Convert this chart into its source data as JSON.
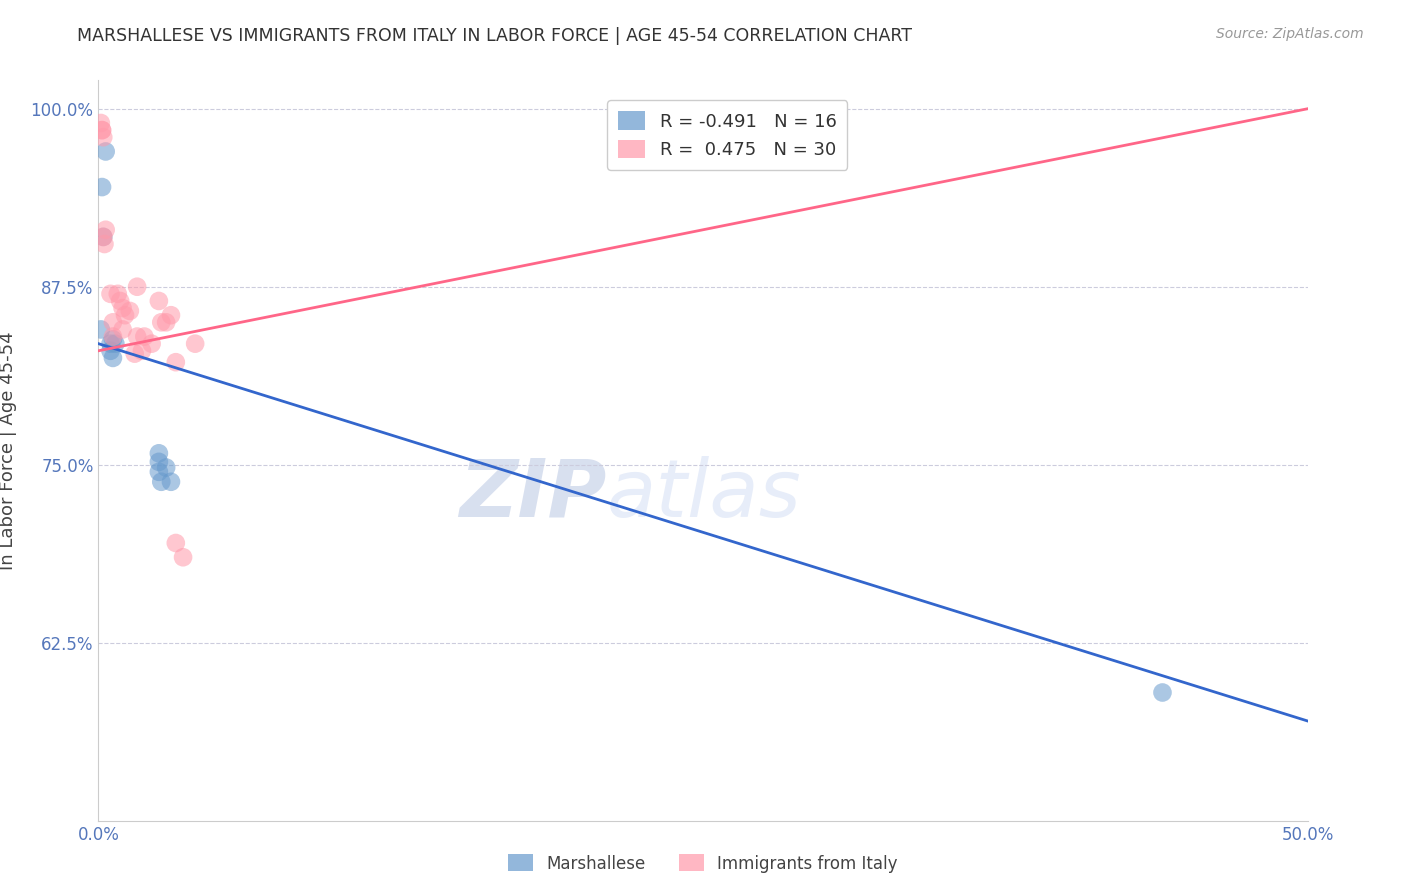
{
  "title": "MARSHALLESE VS IMMIGRANTS FROM ITALY IN LABOR FORCE | AGE 45-54 CORRELATION CHART",
  "source": "Source: ZipAtlas.com",
  "ylabel": "In Labor Force | Age 45-54",
  "xlim": [
    0.0,
    50.0
  ],
  "ylim": [
    50.0,
    102.0
  ],
  "xticks": [
    0.0,
    10.0,
    20.0,
    30.0,
    40.0,
    50.0
  ],
  "xticklabels": [
    "0.0%",
    "",
    "",
    "",
    "",
    "50.0%"
  ],
  "yticks": [
    62.5,
    75.0,
    87.5,
    100.0
  ],
  "yticklabels": [
    "62.5%",
    "75.0%",
    "87.5%",
    "100.0%"
  ],
  "legend_label1": "Marshallese",
  "legend_label2": "Immigrants from Italy",
  "r1": -0.491,
  "n1": 16,
  "r2": 0.475,
  "n2": 30,
  "color1": "#6699CC",
  "color2": "#FF99AA",
  "trend_color1": "#3366CC",
  "trend_color2": "#FF6688",
  "watermark_zip": "ZIP",
  "watermark_atlas": "atlas",
  "blue_points_x": [
    0.3,
    0.1,
    0.15,
    0.2,
    0.6,
    0.5,
    0.5,
    0.7,
    0.6,
    2.5,
    2.5,
    2.8,
    3.0,
    2.5,
    2.6,
    44.0
  ],
  "blue_points_y": [
    97.0,
    84.5,
    94.5,
    91.0,
    83.8,
    83.5,
    83.0,
    83.5,
    82.5,
    75.8,
    75.2,
    74.8,
    73.8,
    74.5,
    73.8,
    59.0
  ],
  "pink_points_x": [
    0.1,
    0.15,
    0.15,
    0.2,
    0.2,
    0.25,
    0.3,
    0.5,
    0.6,
    0.6,
    0.8,
    0.9,
    1.0,
    1.0,
    1.1,
    1.3,
    1.5,
    1.6,
    1.6,
    1.8,
    1.9,
    2.2,
    2.5,
    2.6,
    2.8,
    3.0,
    3.2,
    4.0,
    3.5,
    3.2
  ],
  "pink_points_y": [
    99.0,
    98.5,
    98.5,
    98.0,
    91.0,
    90.5,
    91.5,
    87.0,
    85.0,
    84.0,
    87.0,
    86.5,
    86.0,
    84.5,
    85.5,
    85.8,
    82.8,
    87.5,
    84.0,
    83.0,
    84.0,
    83.5,
    86.5,
    85.0,
    85.0,
    85.5,
    82.2,
    83.5,
    68.5,
    69.5
  ],
  "blue_trend_x": [
    0.0,
    50.0
  ],
  "blue_trend_y": [
    83.5,
    57.0
  ],
  "pink_trend_x": [
    0.0,
    50.0
  ],
  "pink_trend_y": [
    83.0,
    100.0
  ]
}
